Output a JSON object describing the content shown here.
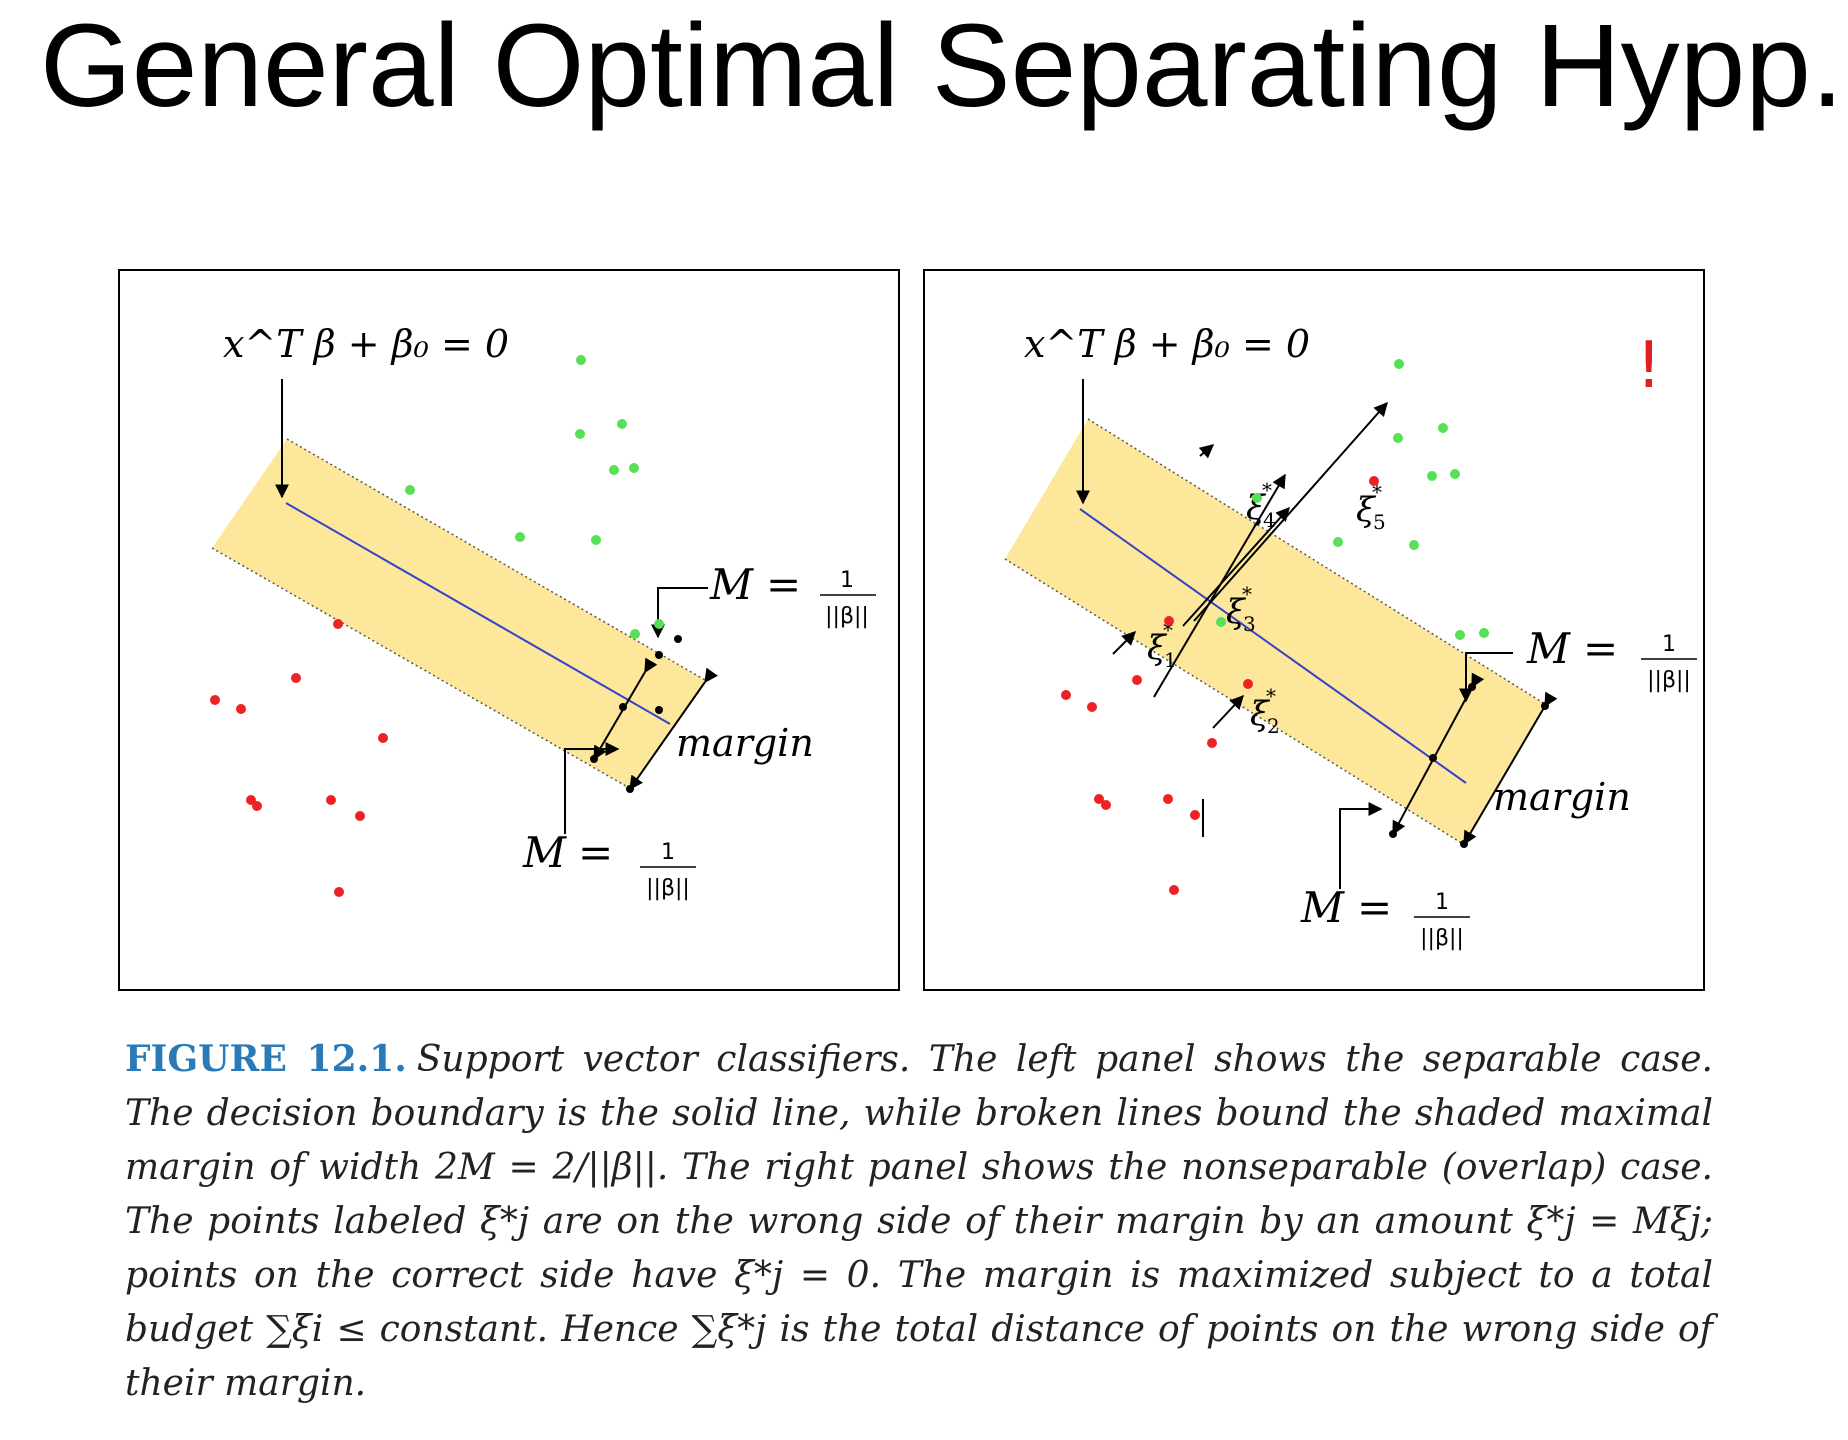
{
  "title": "General Optimal Separating Hypp.",
  "colors": {
    "blue_point": "#3344cc",
    "green_point": "#55e055",
    "red_point": "#ee2222",
    "margin_fill": "#fde79a",
    "boundary_line": "#3344cc",
    "exclamation": "#e02020",
    "figure_label": "#2a7ab8"
  },
  "left_panel": {
    "boundary_label": "x^T β + β₀ = 0",
    "upper_margin_label": {
      "lhs": "M",
      "eq": "=",
      "num": "1",
      "den": "||β||"
    },
    "lower_margin_label": {
      "lhs": "M",
      "eq": "=",
      "num": "1",
      "den": "||β||"
    },
    "margin_word": "margin"
  },
  "right_panel": {
    "boundary_label": "x^T β + β₀ = 0",
    "exclamation": "!",
    "upper_margin_label": {
      "lhs": "M",
      "eq": "=",
      "num": "1",
      "den": "||β||"
    },
    "lower_margin_label": {
      "lhs": "M",
      "eq": "=",
      "num": "1",
      "den": "||β||"
    },
    "margin_word": "margin",
    "slack_labels": [
      {
        "base": "ξ",
        "sub": "4",
        "sup": "*"
      },
      {
        "base": "ξ",
        "sub": "5",
        "sup": "*"
      },
      {
        "base": "ξ",
        "sub": "3",
        "sup": "*"
      },
      {
        "base": "ξ",
        "sub": "1",
        "sup": "*"
      },
      {
        "base": "ξ",
        "sub": "2",
        "sup": "*"
      }
    ]
  },
  "caption": {
    "label": "FIGURE 12.1.",
    "text": "Support vector classifiers. The left panel shows the separable case. The decision boundary is the solid line, while broken lines bound the shaded maximal margin of width 2M = 2/||β||. The right panel shows the nonseparable (overlap) case. The points labeled ξ*j are on the wrong side of their margin by an amount ξ*j = Mξj; points on the correct side have ξ*j = 0. The margin is maximized subject to a total budget ∑ξi ≤ constant. Hence ∑ξ*j is the total distance of points on the wrong side of their margin."
  }
}
